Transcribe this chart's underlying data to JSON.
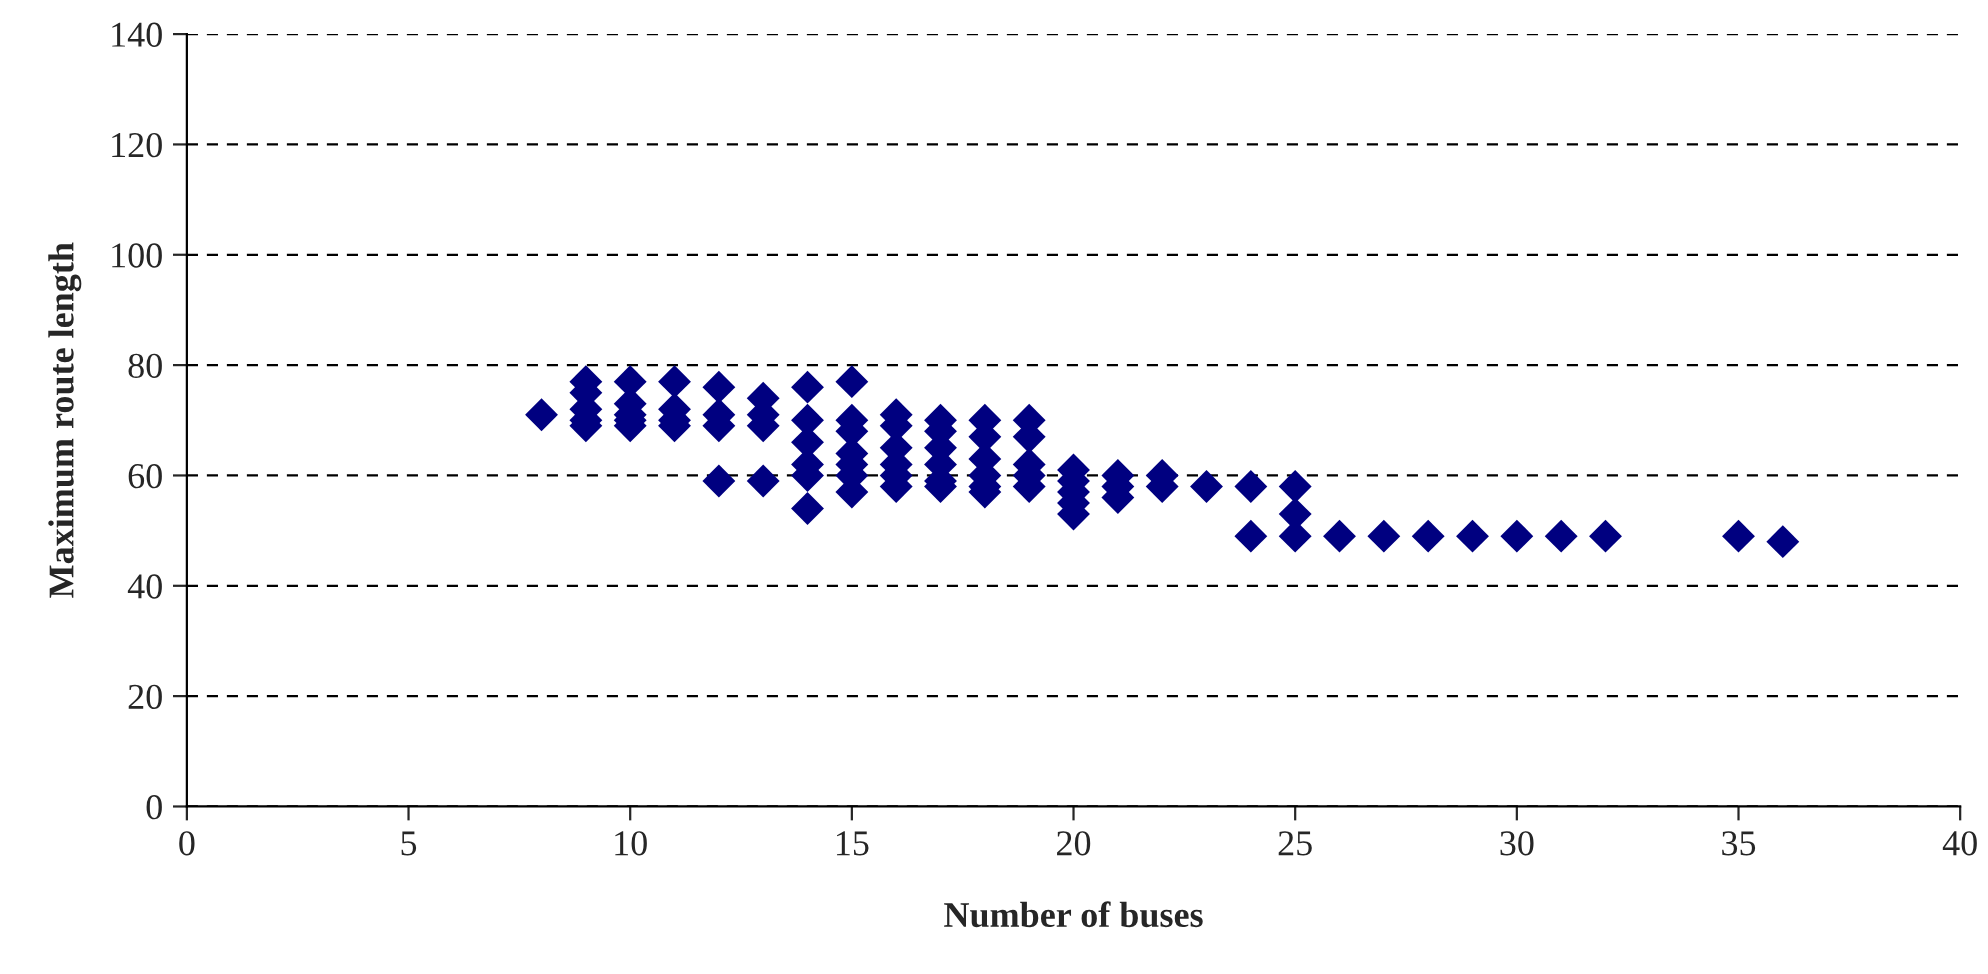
{
  "chart_data": {
    "type": "scatter",
    "xlabel": "Number of buses",
    "ylabel": "Maximum route length",
    "x": [
      8,
      9,
      9,
      9,
      9,
      9,
      10,
      10,
      10,
      10,
      10,
      11,
      11,
      11,
      11,
      12,
      12,
      12,
      12,
      13,
      13,
      13,
      13,
      14,
      14,
      14,
      14,
      14,
      14,
      15,
      15,
      15,
      15,
      15,
      15,
      15,
      16,
      16,
      16,
      16,
      16,
      16,
      17,
      17,
      17,
      17,
      17,
      17,
      18,
      18,
      18,
      18,
      18,
      18,
      19,
      19,
      19,
      19,
      19,
      20,
      20,
      20,
      20,
      20,
      21,
      21,
      21,
      22,
      22,
      23,
      24,
      24,
      25,
      25,
      25,
      26,
      27,
      28,
      29,
      30,
      31,
      32,
      35,
      36
    ],
    "series": [
      {
        "color": "#000080",
        "values": [
          71,
          77,
          75,
          72,
          70,
          69,
          77,
          73,
          71,
          70,
          69,
          77,
          72,
          70,
          69,
          76,
          71,
          69,
          59,
          74,
          71,
          69,
          59,
          76,
          70,
          66,
          62,
          60,
          54,
          77,
          70,
          68,
          64,
          62,
          60,
          57,
          71,
          69,
          65,
          62,
          60,
          58,
          70,
          68,
          65,
          62,
          59,
          58,
          70,
          67,
          63,
          60,
          58,
          57,
          70,
          67,
          62,
          60,
          58,
          61,
          59,
          57,
          55,
          53,
          60,
          58,
          56,
          60,
          58,
          58,
          58,
          49,
          58,
          53,
          49,
          49,
          49,
          49,
          49,
          49,
          49,
          49,
          49,
          48
        ]
      }
    ],
    "marker": "diamond",
    "xlim": [
      0,
      40
    ],
    "xticks": [
      0,
      5,
      10,
      15,
      20,
      25,
      30,
      35,
      40
    ],
    "ylim": [
      0,
      140
    ],
    "yticks": [
      0,
      20,
      40,
      60,
      80,
      100,
      120,
      140
    ],
    "grid": "y"
  }
}
